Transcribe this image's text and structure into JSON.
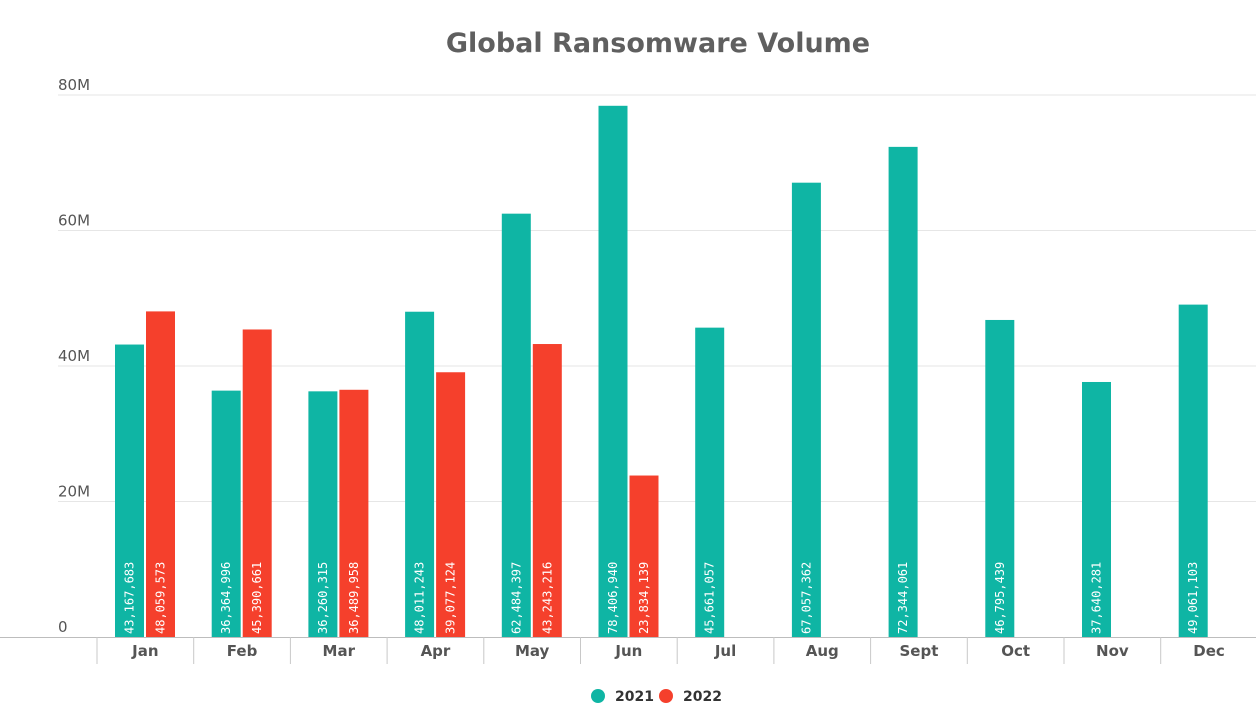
{
  "chart_data": {
    "type": "bar",
    "title": "Global Ransomware Volume",
    "xlabel": "",
    "ylabel": "",
    "categories": [
      "Jan",
      "Feb",
      "Mar",
      "Apr",
      "May",
      "Jun",
      "Jul",
      "Aug",
      "Sept",
      "Oct",
      "Nov",
      "Dec"
    ],
    "ylim": [
      0,
      80000000
    ],
    "yticks": [
      {
        "value": 0,
        "label": "0"
      },
      {
        "value": 20000000,
        "label": "20M"
      },
      {
        "value": 40000000,
        "label": "40M"
      },
      {
        "value": 60000000,
        "label": "60M"
      },
      {
        "value": 80000000,
        "label": "80M"
      }
    ],
    "grid": true,
    "legend_position": "bottom-center",
    "series": [
      {
        "name": "2021",
        "color": "#0fb5a4",
        "values": [
          43167683,
          36364996,
          36260315,
          48011243,
          62484397,
          78406940,
          45661057,
          67057362,
          72344061,
          46795439,
          37640281,
          49061103
        ],
        "labels": [
          "43,167,683",
          "36,364,996",
          "36,260,315",
          "48,011,243",
          "62,484,397",
          "78,406,940",
          "45,661,057",
          "67,057,362",
          "72,344,061",
          "46,795,439",
          "37,640,281",
          "49,061,103"
        ]
      },
      {
        "name": "2022",
        "color": "#f5402c",
        "values": [
          48059573,
          45390661,
          36489958,
          39077124,
          43243216,
          23834139,
          null,
          null,
          null,
          null,
          null,
          null
        ],
        "labels": [
          "48,059,573",
          "45,390,661",
          "36,489,958",
          "39,077,124",
          "43,243,216",
          "23,834,139",
          null,
          null,
          null,
          null,
          null,
          null
        ]
      }
    ]
  }
}
